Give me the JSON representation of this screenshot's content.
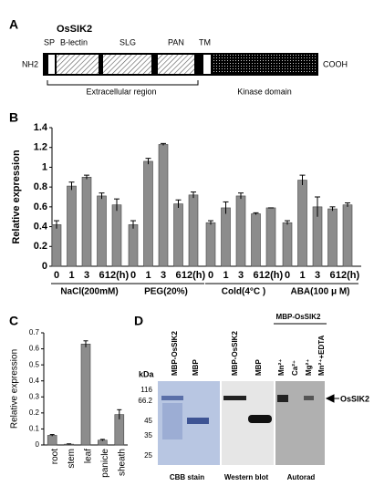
{
  "panel_a": {
    "letter": "A",
    "title": "OsSIK2",
    "domains": [
      "SP",
      "B-lectin",
      "SLG",
      "PAN",
      "TM"
    ],
    "n_term": "NH2",
    "c_term": "COOH",
    "extracellular": "Extracellular region",
    "kinase": "Kinase domain"
  },
  "chart_data": [
    {
      "type": "grouped-bar",
      "letter": "B",
      "y_label": "Relative expression",
      "ylim": [
        0,
        1.4
      ],
      "yticks": [
        0,
        0.2,
        0.4,
        0.6,
        0.8,
        1,
        1.2,
        1.4
      ],
      "color": "#8c8c8c",
      "groups": [
        {
          "name": "NaCl(200mM)",
          "categories": [
            "0",
            "1",
            "3",
            "6",
            "12(h)"
          ],
          "values": [
            0.42,
            0.81,
            0.9,
            0.71,
            0.62
          ],
          "errors": [
            0.04,
            0.04,
            0.02,
            0.03,
            0.06
          ]
        },
        {
          "name": "PEG(20%)",
          "categories": [
            "0",
            "1",
            "3",
            "6",
            "12(h)"
          ],
          "values": [
            0.42,
            1.06,
            1.23,
            0.63,
            0.72
          ],
          "errors": [
            0.04,
            0.03,
            0.01,
            0.04,
            0.03
          ]
        },
        {
          "name": "Cold(4°C )",
          "categories": [
            "0",
            "1",
            "3",
            "6",
            "12(h)"
          ],
          "values": [
            0.44,
            0.59,
            0.71,
            0.53,
            0.59
          ],
          "errors": [
            0.02,
            0.06,
            0.03,
            0.01,
            0
          ]
        },
        {
          "name": "ABA(100 μ M)",
          "categories": [
            "0",
            "1",
            "3",
            "6",
            "12(h)"
          ],
          "values": [
            0.44,
            0.87,
            0.6,
            0.58,
            0.62
          ],
          "errors": [
            0.02,
            0.05,
            0.1,
            0.02,
            0.02
          ]
        }
      ]
    },
    {
      "type": "bar",
      "letter": "C",
      "y_label": "Relative expression",
      "ylim": [
        0,
        0.7
      ],
      "yticks": [
        0,
        0.1,
        0.2,
        0.3,
        0.4,
        0.5,
        0.6,
        0.7
      ],
      "color": "#8c8c8c",
      "categories": [
        "root",
        "stem",
        "leaf",
        "panicle",
        "sheath"
      ],
      "values": [
        0.06,
        0.005,
        0.63,
        0.03,
        0.19
      ],
      "errors": [
        0.005,
        0.002,
        0.02,
        0.005,
        0.03
      ]
    }
  ],
  "panel_d": {
    "letter": "D",
    "unit": "kDa",
    "markers": [
      "116",
      "66.2",
      "45",
      "35",
      "25"
    ],
    "header": "MBP-OsSIK2",
    "lanes": [
      "MBP-OsSIK2",
      "MBP",
      "MBP-OsSIK2",
      "MBP",
      "Mn²⁺",
      "Ca²⁺",
      "Mg²⁺",
      "Mn²⁺+EDTA"
    ],
    "arrow_label": "OsSIK2",
    "captions": [
      "CBB stain",
      "Western blot",
      "Autorad"
    ]
  }
}
